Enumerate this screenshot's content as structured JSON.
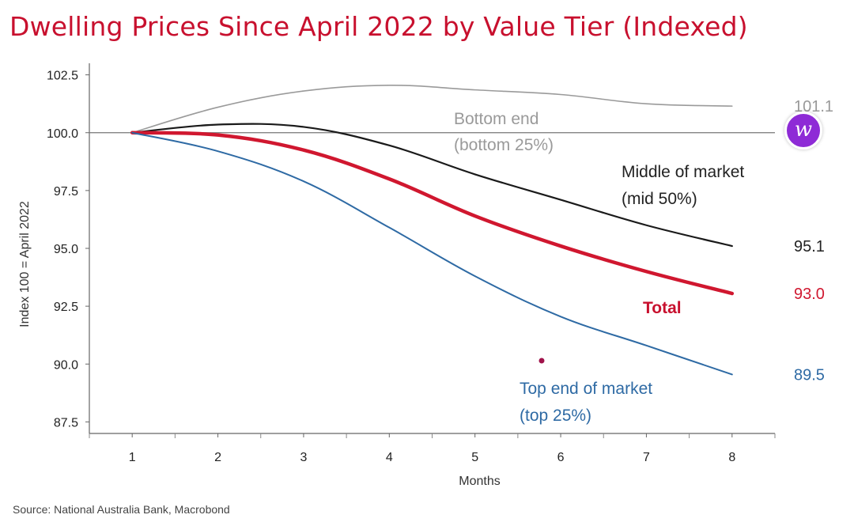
{
  "chart_data": {
    "type": "line",
    "title": "Dwelling Prices Since April 2022 by Value Tier (Indexed)",
    "xlabel": "Months",
    "ylabel": "Index 100 = April 2022",
    "x": [
      1,
      2,
      3,
      4,
      5,
      6,
      7,
      8
    ],
    "xlim": [
      0.5,
      8.5
    ],
    "ylim": [
      87.0,
      103.0
    ],
    "yticks": [
      "87.5",
      "90.0",
      "92.5",
      "95.0",
      "97.5",
      "100.0",
      "102.5"
    ],
    "xticks": [
      "1",
      "2",
      "3",
      "4",
      "5",
      "6",
      "7",
      "8"
    ],
    "reference_line": 100.0,
    "series": [
      {
        "name": "Bottom end",
        "sublabel": "(bottom 25%)",
        "end_label": "101.1",
        "color": "#9a9a9a",
        "values": [
          100.0,
          101.1,
          101.8,
          102.05,
          101.85,
          101.65,
          101.25,
          101.15
        ]
      },
      {
        "name": "Middle of market",
        "sublabel": "(mid 50%)",
        "end_label": "95.1",
        "color": "#1a1a1a",
        "values": [
          100.0,
          100.35,
          100.25,
          99.45,
          98.2,
          97.1,
          96.0,
          95.1
        ]
      },
      {
        "name": "Total",
        "sublabel": "",
        "end_label": "93.0",
        "color": "#d0172f",
        "values": [
          100.0,
          99.9,
          99.25,
          98.0,
          96.4,
          95.1,
          94.0,
          93.05
        ]
      },
      {
        "name": "Top end of market",
        "sublabel": "(top 25%)",
        "end_label": "89.5",
        "color": "#2e6aa4",
        "values": [
          100.0,
          99.2,
          97.9,
          95.9,
          93.8,
          92.05,
          90.8,
          89.55
        ]
      }
    ]
  },
  "source": "Source: National Australia Bank, Macrobond",
  "badge": {
    "letter": "w",
    "color": "#8e2bd6",
    "icon": "w-logo-icon"
  }
}
